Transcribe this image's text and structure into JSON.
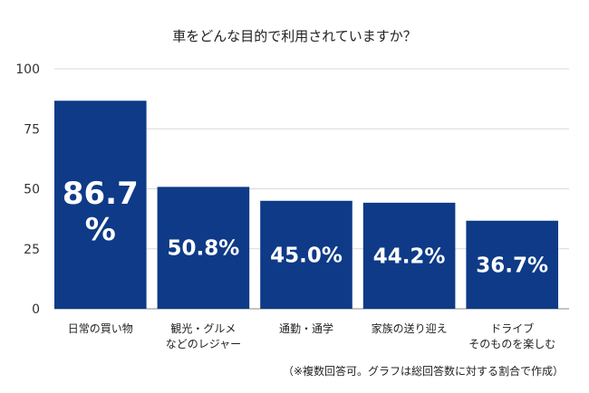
{
  "chart_data": {
    "type": "bar",
    "title": "車をどんな目的で利用されていますか？",
    "categories": [
      [
        "日常の買い物"
      ],
      [
        "観光・グルメ",
        "などのレジャー"
      ],
      [
        "通勤・通学"
      ],
      [
        "家族の送り迎え"
      ],
      [
        "ドライブ",
        "そのものを楽しむ"
      ]
    ],
    "values": [
      86.7,
      50.8,
      45.0,
      44.2,
      36.7
    ],
    "value_labels": [
      "86.7%",
      "50.8%",
      "45.0%",
      "44.2%",
      "36.7%"
    ],
    "ylim": [
      0,
      100
    ],
    "yticks": [
      0,
      25,
      50,
      75,
      100
    ],
    "grid": true,
    "bar_color": "#0e3a87",
    "note": "（※複数回答可。グラフは総回答数に対する割合で作成）"
  }
}
